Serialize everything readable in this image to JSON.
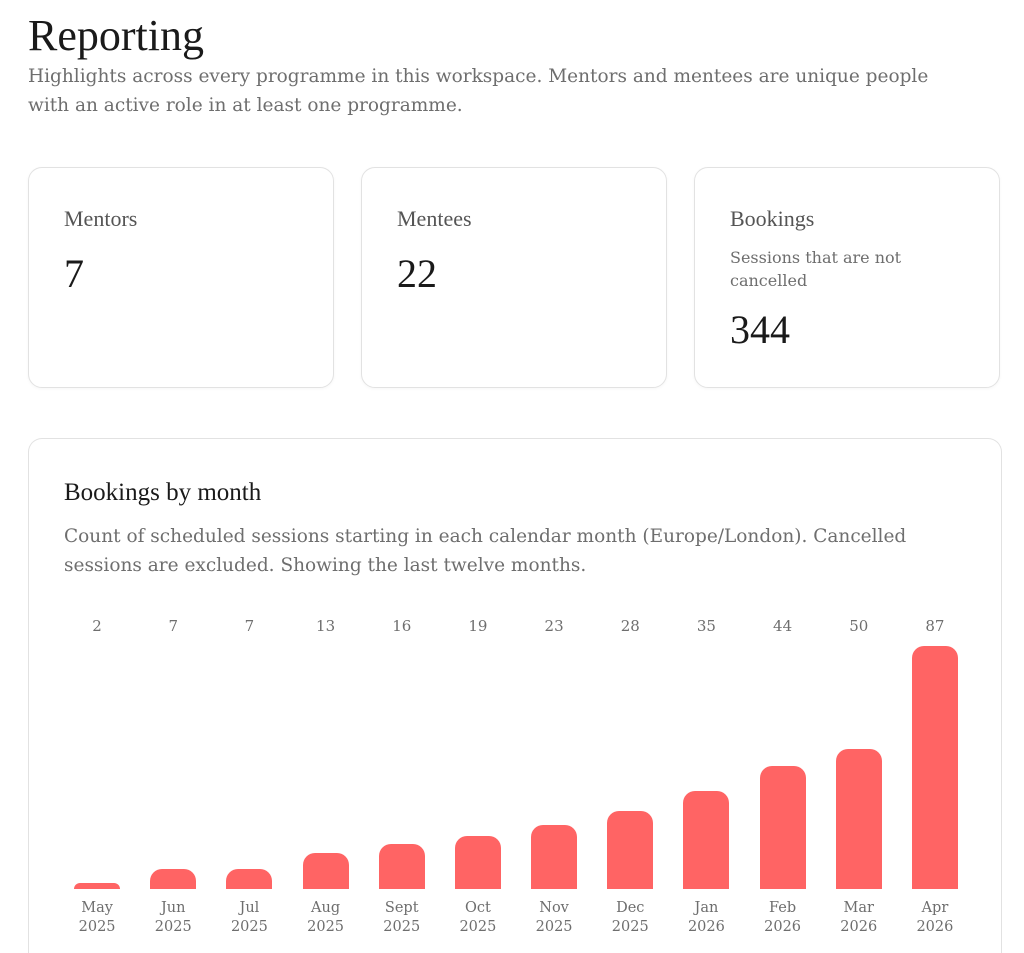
{
  "header": {
    "title": "Reporting",
    "subtitle": "Highlights across every programme in this workspace. Mentors and mentees are unique people with an active role in at least one programme."
  },
  "stats": [
    {
      "label": "Mentors",
      "value": 7
    },
    {
      "label": "Mentees",
      "value": 22
    },
    {
      "label": "Bookings",
      "note": "Sessions that are not cancelled",
      "value": 344
    }
  ],
  "chart_data": {
    "type": "bar",
    "title": "Bookings by month",
    "subtitle": "Count of scheduled sessions starting in each calendar month (Europe/London). Cancelled sessions are excluded. Showing the last twelve months.",
    "categories": [
      "May 2025",
      "Jun 2025",
      "Jul 2025",
      "Aug 2025",
      "Sept 2025",
      "Oct 2025",
      "Nov 2025",
      "Dec 2025",
      "Jan 2026",
      "Feb 2026",
      "Mar 2026",
      "Apr 2026"
    ],
    "values": [
      2,
      7,
      7,
      13,
      16,
      19,
      23,
      28,
      35,
      44,
      50,
      87
    ],
    "color": "#ff6464"
  }
}
